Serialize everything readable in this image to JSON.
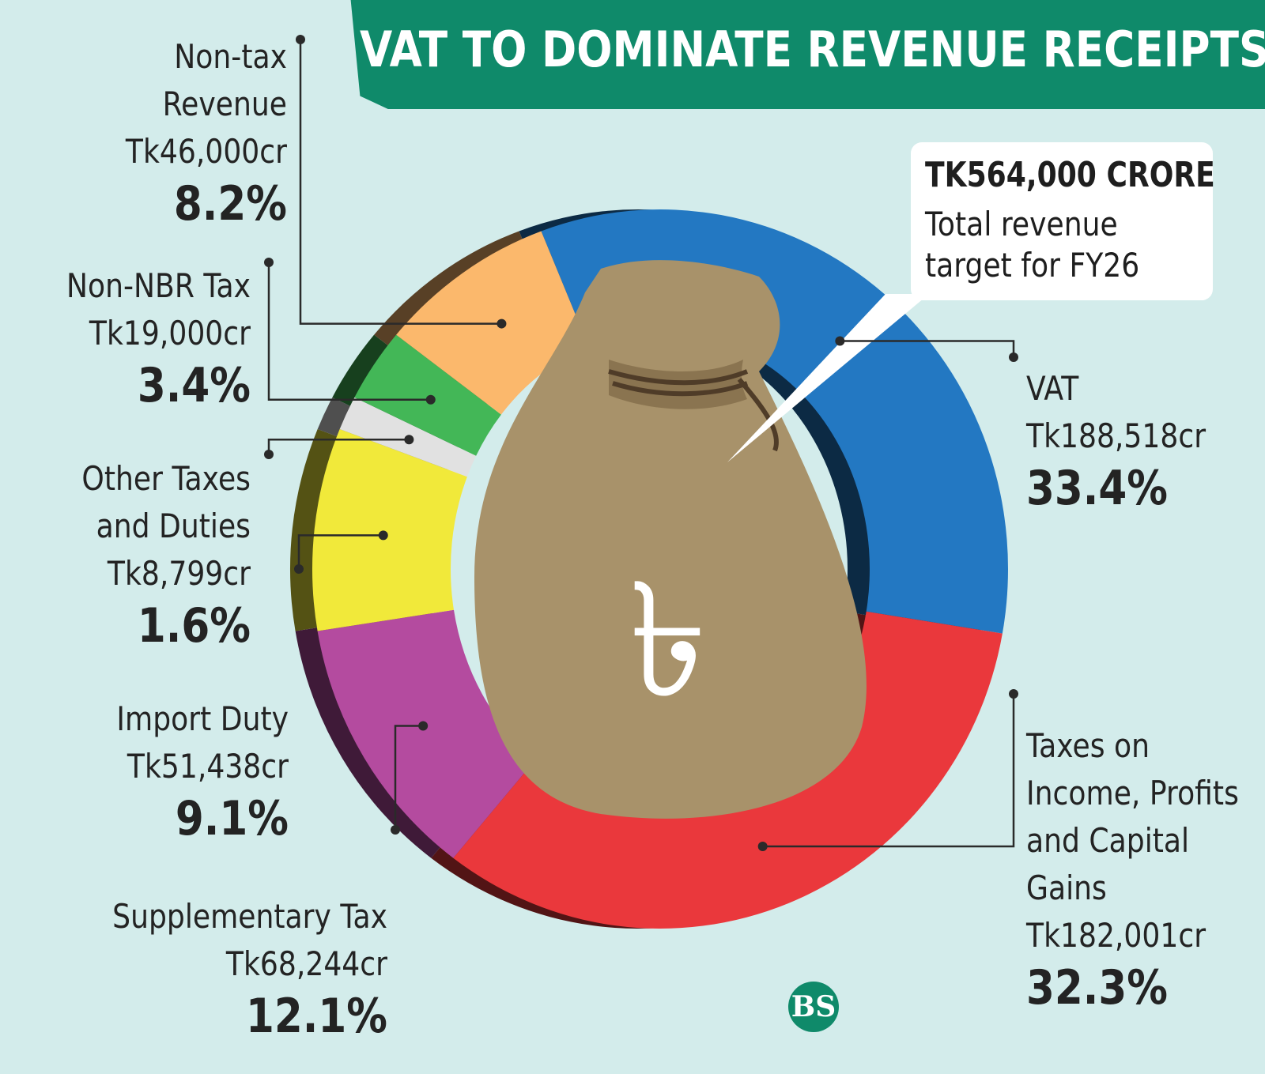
{
  "title": "VAT TO DOMINATE REVENUE RECEIPTS",
  "total": {
    "amount": "TK564,000 CRORE",
    "description": "Total revenue target for FY26"
  },
  "bag_symbol": "৳",
  "logo_text": "BS",
  "chart_data": {
    "type": "pie",
    "style": "donut",
    "title": "VAT TO DOMINATE REVENUE RECEIPTS",
    "unit": "Tk crore",
    "total": 564000,
    "slices": [
      {
        "name": "VAT",
        "amount": "Tk188,518cr",
        "percent": "33.4%",
        "value": 188518,
        "color": "#2378c2"
      },
      {
        "name": "Taxes on Income, Profits and Capital Gains",
        "amount": "Tk182,001cr",
        "percent": "32.3%",
        "value": 182001,
        "color": "#ea383c"
      },
      {
        "name": "Supplementary Tax",
        "amount": "Tk68,244cr",
        "percent": "12.1%",
        "value": 68244,
        "color": "#b44b9f"
      },
      {
        "name": "Import Duty",
        "amount": "Tk51,438cr",
        "percent": "9.1%",
        "value": 51438,
        "color": "#f1e93a"
      },
      {
        "name": "Other Taxes and Duties",
        "amount": "Tk8,799cr",
        "percent": "1.6%",
        "value": 8799,
        "color": "#e1e1e1"
      },
      {
        "name": "Non-NBR Tax",
        "amount": "Tk19,000cr",
        "percent": "3.4%",
        "value": 19000,
        "color": "#43b757"
      },
      {
        "name": "Non-tax Revenue",
        "amount": "Tk46,000cr",
        "percent": "8.2%",
        "value": 46000,
        "color": "#fbb86c"
      }
    ]
  }
}
